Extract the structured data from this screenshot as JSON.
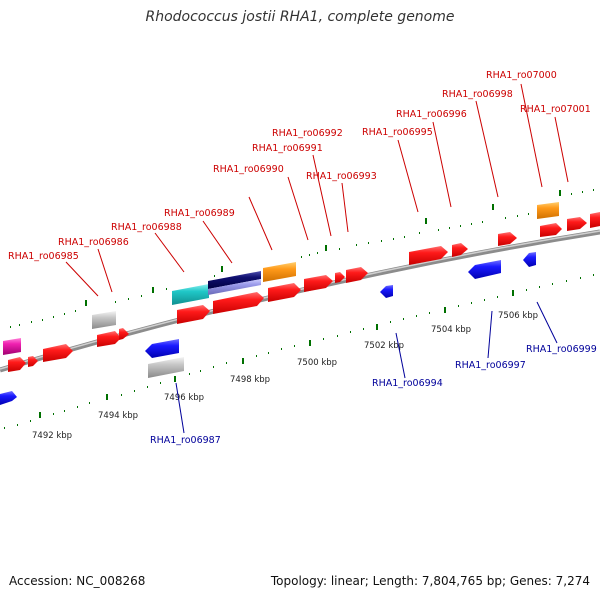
{
  "title": "Rhodococcus jostii RHA1, complete genome",
  "footer": {
    "accession": "Accession: NC_008268",
    "summary": "Topology: linear; Length: 7,804,765 bp; Genes: 7,274"
  },
  "colors": {
    "backbone": "#8c8c8c",
    "forward_label": "#cc0000",
    "reverse_label": "#00009a",
    "tick": "#007000"
  },
  "kbp_labels": [
    "7492 kbp",
    "7494 kbp",
    "7496 kbp",
    "7498 kbp",
    "7500 kbp",
    "7502 kbp",
    "7504 kbp",
    "7506 kbp"
  ],
  "forward_genes": [
    "RHA1_ro06985",
    "RHA1_ro06986",
    "RHA1_ro06988",
    "RHA1_ro06989",
    "RHA1_ro06990",
    "RHA1_ro06991",
    "RHA1_ro06992",
    "RHA1_ro06993",
    "RHA1_ro06995",
    "RHA1_ro06996",
    "RHA1_ro06998",
    "RHA1_ro07000",
    "RHA1_ro07001"
  ],
  "reverse_genes": [
    "RHA1_ro06987",
    "RHA1_ro06994",
    "RHA1_ro06997",
    "RHA1_ro06999"
  ]
}
